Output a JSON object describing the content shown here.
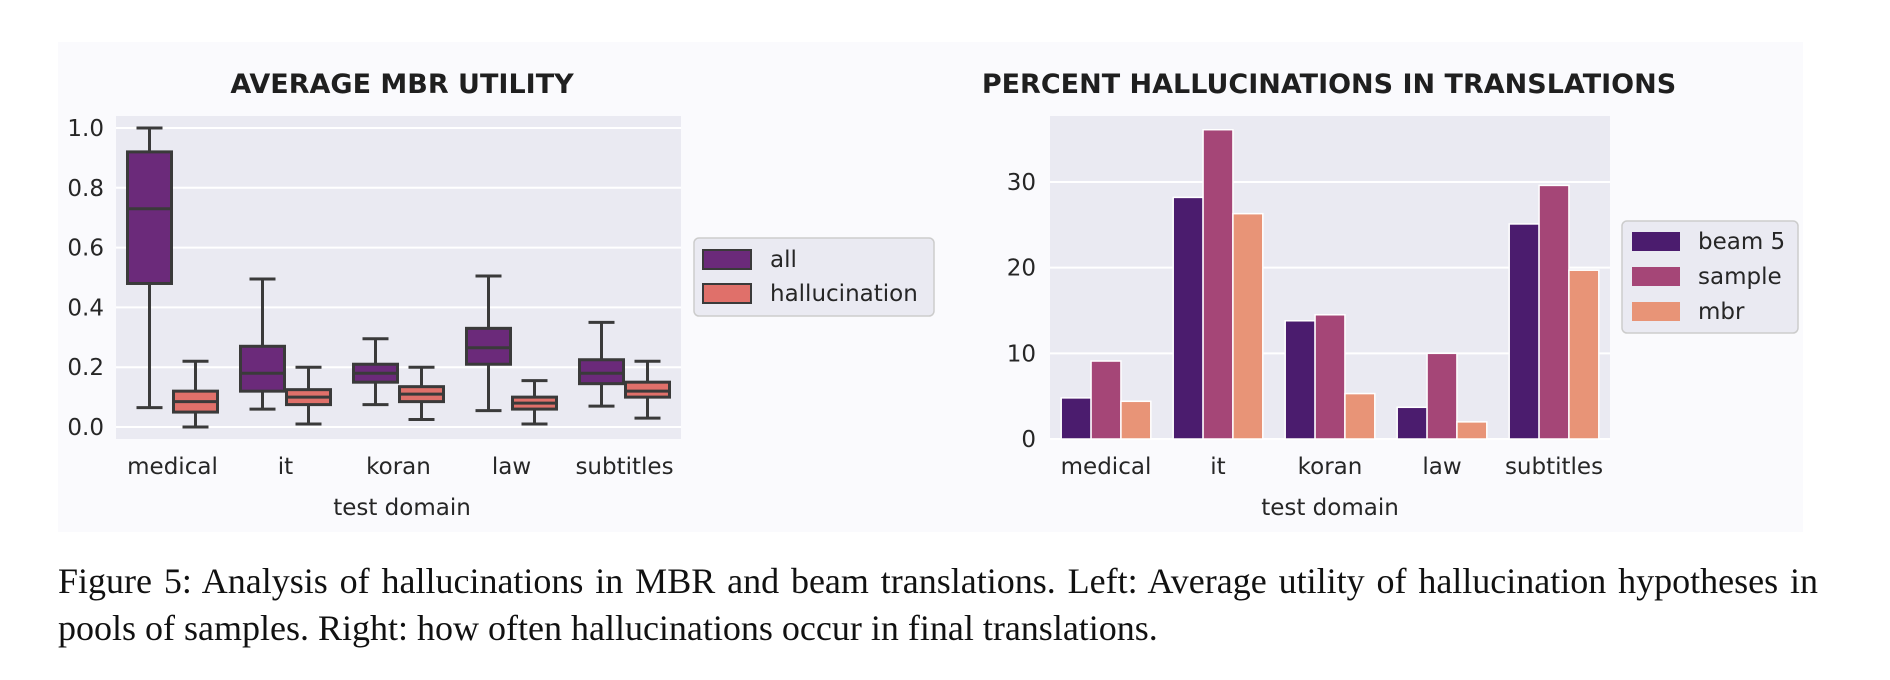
{
  "chart_data": [
    {
      "type": "box",
      "title": "AVERAGE MBR UTILITY",
      "xlabel": "test domain",
      "ylabel": "",
      "ylim": [
        -0.04,
        1.04
      ],
      "yticks": [
        "0.0",
        "0.2",
        "0.4",
        "0.6",
        "0.8",
        "1.0"
      ],
      "grid": true,
      "legend_position": "outside-right",
      "categories": [
        "medical",
        "it",
        "koran",
        "law",
        "subtitles"
      ],
      "series": [
        {
          "name": "all",
          "color": "#6b2a7a",
          "boxes": [
            {
              "min": 0.065,
              "q1": 0.48,
              "median": 0.73,
              "q3": 0.92,
              "max": 1.0
            },
            {
              "min": 0.06,
              "q1": 0.12,
              "median": 0.18,
              "q3": 0.27,
              "max": 0.495
            },
            {
              "min": 0.075,
              "q1": 0.15,
              "median": 0.18,
              "q3": 0.21,
              "max": 0.295
            },
            {
              "min": 0.055,
              "q1": 0.21,
              "median": 0.265,
              "q3": 0.33,
              "max": 0.505
            },
            {
              "min": 0.07,
              "q1": 0.145,
              "median": 0.18,
              "q3": 0.225,
              "max": 0.35
            }
          ]
        },
        {
          "name": "hallucination",
          "color": "#e0706a",
          "boxes": [
            {
              "min": 0.0,
              "q1": 0.05,
              "median": 0.085,
              "q3": 0.12,
              "max": 0.22
            },
            {
              "min": 0.01,
              "q1": 0.075,
              "median": 0.1,
              "q3": 0.125,
              "max": 0.2
            },
            {
              "min": 0.025,
              "q1": 0.085,
              "median": 0.11,
              "q3": 0.135,
              "max": 0.2
            },
            {
              "min": 0.01,
              "q1": 0.06,
              "median": 0.08,
              "q3": 0.1,
              "max": 0.155
            },
            {
              "min": 0.03,
              "q1": 0.1,
              "median": 0.12,
              "q3": 0.15,
              "max": 0.22
            }
          ]
        }
      ]
    },
    {
      "type": "bar",
      "title": "PERCENT HALLUCINATIONS IN TRANSLATIONS",
      "xlabel": "test domain",
      "ylabel": "",
      "ylim": [
        0,
        37.7
      ],
      "yticks": [
        "0",
        "10",
        "20",
        "30"
      ],
      "grid": true,
      "legend_position": "outside-right",
      "categories": [
        "medical",
        "it",
        "koran",
        "law",
        "subtitles"
      ],
      "series": [
        {
          "name": "beam 5",
          "color": "#4b1c6e",
          "values": [
            4.8,
            28.2,
            13.8,
            3.7,
            25.1
          ]
        },
        {
          "name": "sample",
          "color": "#a54677",
          "values": [
            9.1,
            36.1,
            14.5,
            10.0,
            29.6
          ]
        },
        {
          "name": "mbr",
          "color": "#e89477",
          "values": [
            4.4,
            26.3,
            5.3,
            2.0,
            19.7
          ]
        }
      ]
    }
  ],
  "caption": "Figure 5: Analysis of hallucinations in MBR and beam translations. Left: Average utility of hallucination hypotheses in pools of samples. Right: how often hallucinations occur in final translations."
}
